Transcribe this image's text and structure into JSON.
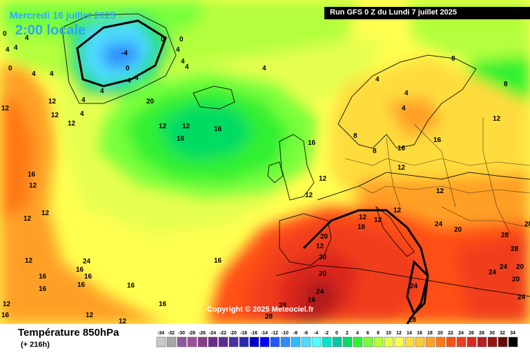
{
  "header": {
    "valid_date": "Mercredi 16 juillet 2025",
    "local_time": "2:00 locale",
    "run_info": "Run GFS 0 Z du Lundi 7 juillet 2025"
  },
  "copyright": "Copyright © 2025 Meteociel.fr",
  "footer": {
    "parameter": "Température 850hPa",
    "lead_time": "(+ 216h)"
  },
  "legend": {
    "ticks": [
      "-34",
      "-32",
      "-30",
      "-28",
      "-26",
      "-24",
      "-22",
      "-20",
      "-18",
      "-16",
      "-14",
      "-12",
      "-10",
      "-8",
      "-6",
      "-4",
      "-2",
      "0",
      "2",
      "4",
      "6",
      "8",
      "10",
      "12",
      "14",
      "16",
      "18",
      "20",
      "22",
      "24",
      "26",
      "28",
      "30",
      "32",
      "34"
    ],
    "colors": [
      "#c8c8c8",
      "#a6a6a6",
      "#8c5aa0",
      "#a0509a",
      "#8a3c8c",
      "#6c2c8c",
      "#5a2c8c",
      "#4632a0",
      "#2828b4",
      "#0000c8",
      "#0000ff",
      "#1e5aff",
      "#2d8cff",
      "#2dbeff",
      "#50dcff",
      "#50ffff",
      "#00e6c8",
      "#00c8a0",
      "#00dc64",
      "#32f032",
      "#78ff3c",
      "#b4ff3c",
      "#e6ff50",
      "#ffff50",
      "#ffdc3c",
      "#ffc832",
      "#ffa028",
      "#ff7814",
      "#ff5014",
      "#f03c1e",
      "#dc281e",
      "#b41e1e",
      "#961414",
      "#640a0a",
      "#000000"
    ]
  },
  "map_values": [
    "0",
    "4",
    "4",
    "4",
    "0",
    "-4",
    "0",
    "0",
    "4",
    "4",
    "4",
    "4",
    "4",
    "4",
    "0",
    "4",
    "4",
    "12",
    "12",
    "12",
    "12",
    "16",
    "12",
    "12",
    "12",
    "12",
    "12",
    "12",
    "16",
    "16",
    "16",
    "4",
    "4",
    "4",
    "4",
    "8",
    "8",
    "16",
    "16",
    "12",
    "12",
    "12",
    "12",
    "12",
    "12",
    "16",
    "12",
    "12",
    "20",
    "20",
    "20",
    "16",
    "24",
    "28",
    "28",
    "28",
    "28",
    "28",
    "28",
    "24",
    "24",
    "20",
    "20",
    "24",
    "24",
    "24",
    "20",
    "24",
    "16",
    "16",
    "16",
    "16",
    "16",
    "16",
    "16",
    "12",
    "12",
    "12",
    "16",
    "16",
    "12",
    "8",
    "8",
    "4",
    "4",
    "20",
    "20",
    "20",
    "16",
    "16",
    "12",
    "4"
  ]
}
